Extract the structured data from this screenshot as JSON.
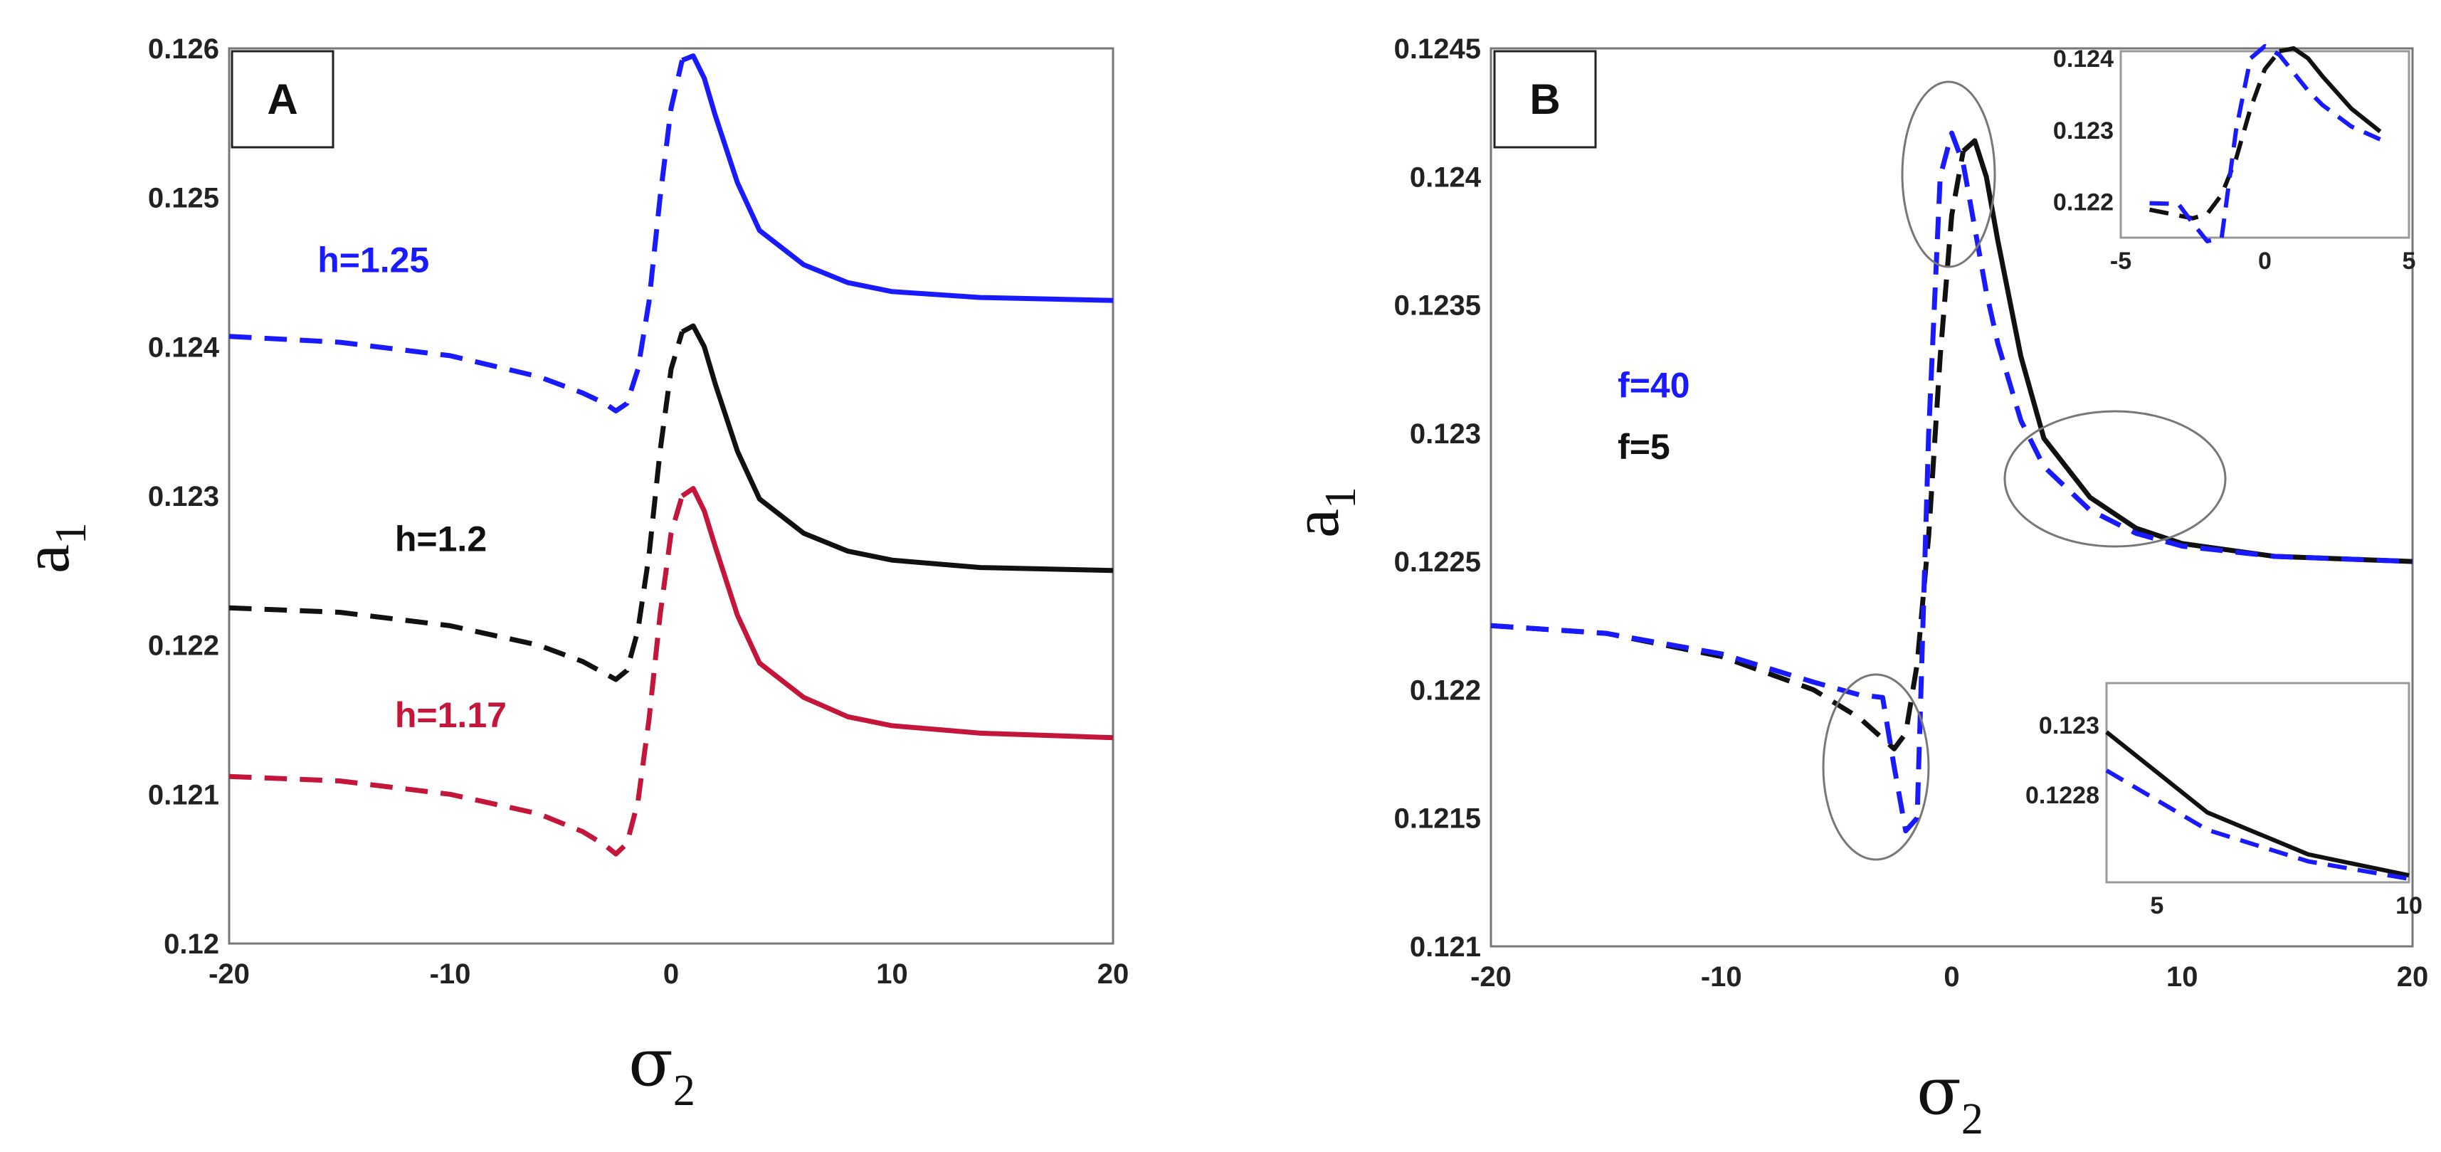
{
  "chart_data": [
    {
      "type": "line",
      "panel": "A",
      "xlabel": "σ",
      "xlabel_sub": "2",
      "ylabel": "a",
      "ylabel_sub": "1",
      "xlim": [
        -20,
        20
      ],
      "ylim": [
        0.12,
        0.126
      ],
      "xticks": [
        "-20",
        "-10",
        "0",
        "10",
        "20"
      ],
      "yticks": [
        "0.12",
        "0.121",
        "0.122",
        "0.123",
        "0.124",
        "0.125",
        "0.126"
      ],
      "series": [
        {
          "name": "h=1.25",
          "color": "#1a1aff",
          "x": [
            -20,
            -15,
            -10,
            -6,
            -4,
            -3,
            -2.5,
            -2,
            -1.5,
            -1,
            -0.5,
            0,
            0.5,
            1,
            1.5,
            2,
            3,
            4,
            6,
            8,
            10,
            14,
            20
          ],
          "y": [
            0.12407,
            0.12403,
            0.12394,
            0.1238,
            0.12369,
            0.12362,
            0.12357,
            0.12362,
            0.12385,
            0.1243,
            0.125,
            0.1256,
            0.12592,
            0.12595,
            0.1258,
            0.12555,
            0.1251,
            0.12478,
            0.12455,
            0.12443,
            0.12437,
            0.12433,
            0.12431
          ],
          "dashed_until_x": 0.5
        },
        {
          "name": "h=1.2",
          "color": "#111111",
          "x": [
            -20,
            -15,
            -10,
            -6,
            -4,
            -3,
            -2.5,
            -2,
            -1.5,
            -1,
            -0.5,
            0,
            0.5,
            1,
            1.5,
            2,
            3,
            4,
            6,
            8,
            10,
            14,
            20
          ],
          "y": [
            0.12225,
            0.12222,
            0.12213,
            0.122,
            0.12189,
            0.12181,
            0.12177,
            0.12183,
            0.1221,
            0.1226,
            0.1233,
            0.12385,
            0.1241,
            0.12414,
            0.124,
            0.12375,
            0.1233,
            0.12298,
            0.12275,
            0.12263,
            0.12257,
            0.12252,
            0.1225
          ],
          "dashed_until_x": 0.5
        },
        {
          "name": "h=1.17",
          "color": "#c4163a",
          "x": [
            -20,
            -15,
            -10,
            -6,
            -4,
            -3,
            -2.5,
            -2,
            -1.5,
            -1,
            -0.5,
            0,
            0.5,
            1,
            1.5,
            2,
            3,
            4,
            6,
            8,
            10,
            14,
            20
          ],
          "y": [
            0.12112,
            0.12109,
            0.121,
            0.12087,
            0.12075,
            0.12066,
            0.1206,
            0.12067,
            0.12095,
            0.1215,
            0.1222,
            0.12275,
            0.123,
            0.12305,
            0.1229,
            0.12266,
            0.1222,
            0.12188,
            0.12165,
            0.12152,
            0.12146,
            0.12141,
            0.12138
          ],
          "dashed_until_x": 0.5
        }
      ],
      "annotations": [
        {
          "text": "h=1.25",
          "color": "#1a1aff",
          "x": -16,
          "y": 0.1245
        },
        {
          "text": "h=1.2",
          "color": "#111111",
          "x": -12.5,
          "y": 0.12263
        },
        {
          "text": "h=1.17",
          "color": "#c4163a",
          "x": -12.5,
          "y": 0.12145
        }
      ]
    },
    {
      "type": "line",
      "panel": "B",
      "xlabel": "σ",
      "xlabel_sub": "2",
      "ylabel": "a",
      "ylabel_sub": "1",
      "xlim": [
        -20,
        20
      ],
      "ylim": [
        0.121,
        0.1245
      ],
      "xticks": [
        "-20",
        "-10",
        "0",
        "10",
        "20"
      ],
      "yticks": [
        "0.121",
        "0.1215",
        "0.122",
        "0.1225",
        "0.123",
        "0.1235",
        "0.124",
        "0.1245"
      ],
      "series": [
        {
          "name": "f=5",
          "color": "#111111",
          "x": [
            -20,
            -15,
            -10,
            -6,
            -4,
            -3,
            -2.5,
            -2,
            -1.5,
            -1,
            -0.5,
            0,
            0.5,
            1,
            1.5,
            2,
            3,
            4,
            6,
            8,
            10,
            14,
            20
          ],
          "y": [
            0.12225,
            0.12222,
            0.12213,
            0.122,
            0.12189,
            0.12181,
            0.12177,
            0.12183,
            0.1221,
            0.1226,
            0.1233,
            0.12385,
            0.1241,
            0.12414,
            0.124,
            0.12375,
            0.1233,
            0.12298,
            0.12275,
            0.12263,
            0.12257,
            0.12252,
            0.1225
          ],
          "dashed_until_x": 0.5
        },
        {
          "name": "f=40",
          "color": "#1a1aff",
          "x": [
            -20,
            -15,
            -10,
            -6,
            -4,
            -3,
            -2.5,
            -2,
            -1.5,
            -1,
            -0.5,
            0,
            0.5,
            1,
            1.5,
            2,
            3,
            4,
            6,
            8,
            10,
            14,
            20
          ],
          "y": [
            0.12225,
            0.12222,
            0.12214,
            0.12203,
            0.12198,
            0.12197,
            0.1217,
            0.12145,
            0.1215,
            0.123,
            0.124,
            0.12417,
            0.12405,
            0.1238,
            0.12355,
            0.12335,
            0.12305,
            0.12287,
            0.1227,
            0.12261,
            0.12256,
            0.12252,
            0.1225
          ],
          "dashed_until_x": 20
        }
      ],
      "annotations": [
        {
          "text": "f=40",
          "color": "#1a1aff",
          "x": -14.5,
          "y": 0.12314
        },
        {
          "text": "f=5",
          "color": "#111111",
          "x": -14.5,
          "y": 0.1229
        }
      ],
      "insets": [
        {
          "name": "peak-zoom",
          "xlim": [
            -5,
            5
          ],
          "ylim": [
            0.1215,
            0.1241
          ],
          "xticks": [
            "-5",
            "0",
            "5"
          ],
          "yticks": [
            "0.122",
            "0.123",
            "0.124"
          ]
        },
        {
          "name": "tail-zoom",
          "xlim": [
            4,
            10
          ],
          "ylim": [
            0.12255,
            0.12312
          ],
          "xticks": [
            "5",
            "10"
          ],
          "yticks": [
            "0.1228",
            "0.123"
          ]
        }
      ]
    }
  ],
  "panels": {
    "A": {
      "letter": "A"
    },
    "B": {
      "letter": "B"
    }
  }
}
